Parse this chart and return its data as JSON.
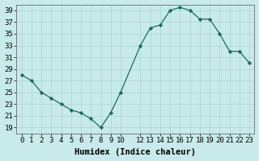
{
  "x": [
    0,
    1,
    2,
    3,
    4,
    5,
    6,
    7,
    8,
    9,
    10,
    12,
    13,
    14,
    15,
    16,
    17,
    18,
    19,
    20,
    21,
    22,
    23
  ],
  "y": [
    28,
    27,
    25,
    24,
    23,
    22,
    21.5,
    20.5,
    19,
    21.5,
    25,
    33,
    36,
    36.5,
    39,
    39.5,
    39,
    37.5,
    37.5,
    35,
    32,
    32,
    30
  ],
  "line_color": "#1a6b5a",
  "marker_color": "#1a6b5a",
  "bg_color": "#c8eaea",
  "grid_color": "#aed8d8",
  "xlabel": "Humidex (Indice chaleur)",
  "ylim": [
    18,
    40
  ],
  "xlim": [
    -0.5,
    23.5
  ],
  "yticks": [
    19,
    21,
    23,
    25,
    27,
    29,
    31,
    33,
    35,
    37,
    39
  ],
  "xticks": [
    0,
    1,
    2,
    3,
    4,
    5,
    6,
    7,
    8,
    9,
    10,
    12,
    13,
    14,
    15,
    16,
    17,
    18,
    19,
    20,
    21,
    22,
    23
  ],
  "xtick_labels": [
    "0",
    "1",
    "2",
    "3",
    "4",
    "5",
    "6",
    "7",
    "8",
    "9",
    "10",
    "12",
    "13",
    "14",
    "15",
    "16",
    "17",
    "18",
    "19",
    "20",
    "21",
    "22",
    "23"
  ],
  "font_size": 6.5,
  "xlabel_fontsize": 7.5
}
